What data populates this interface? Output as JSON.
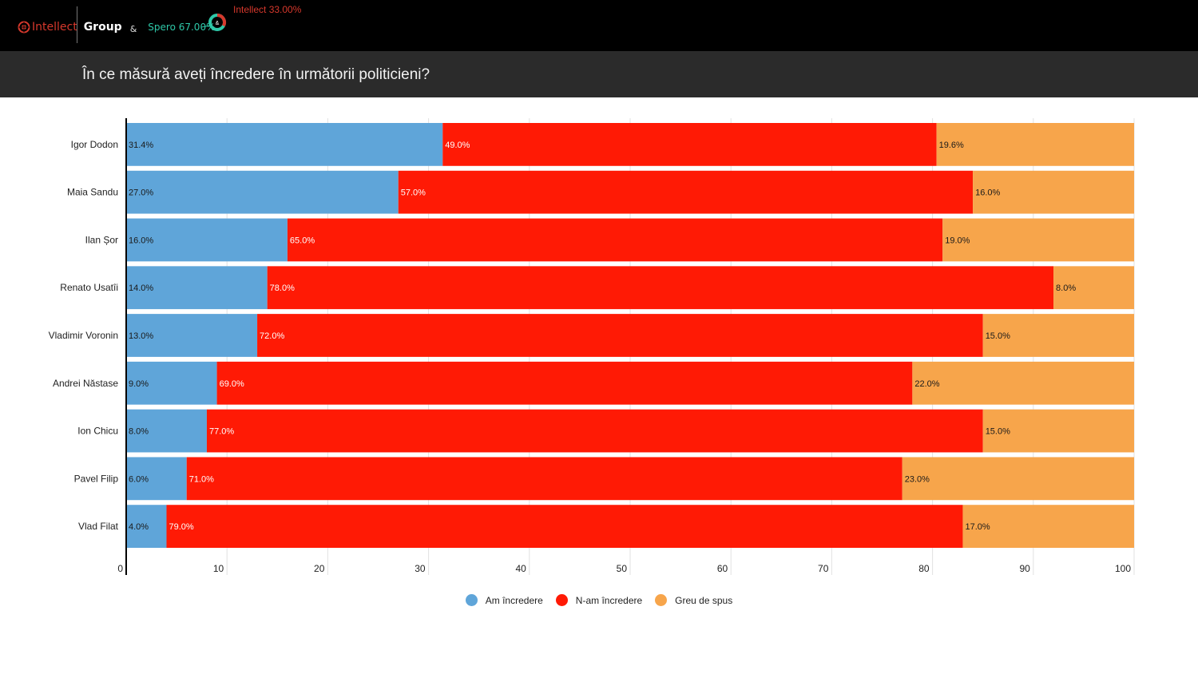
{
  "header": {
    "brand_intellect": "Intellect",
    "brand_group": "Group",
    "brand_amp": "&",
    "spero_label": "Spero 67.00%",
    "intellect_label": "Intellect 33.00%",
    "donut_amp": "&",
    "spero_share": 67,
    "intellect_share": 33
  },
  "colors": {
    "trust": "#5fa5d9",
    "distrust": "#ff1a05",
    "hard_to_say": "#f7a54b",
    "brand_red": "#d6382c",
    "brand_teal": "#2ec8a8"
  },
  "chart_data": {
    "type": "bar",
    "orientation": "horizontal",
    "stacked": true,
    "title": "În ce măsură aveți încredere în următorii politicieni?",
    "categories": [
      "Igor Dodon",
      "Maia Sandu",
      "Ilan Șor",
      "Renato Usatîi",
      "Vladimir Voronin",
      "Andrei Năstase",
      "Ion Chicu",
      "Pavel Filip",
      "Vlad Filat"
    ],
    "series": [
      {
        "name": "Am încredere",
        "values": [
          31.4,
          27.0,
          16.0,
          14.0,
          13.0,
          9.0,
          8.0,
          6.0,
          4.0
        ],
        "labels": [
          "31.4%",
          "27.0%",
          "16.0%",
          "14.0%",
          "13.0%",
          "9.0%",
          "8.0%",
          "6.0%",
          "4.0%"
        ]
      },
      {
        "name": "N-am încredere",
        "values": [
          49.0,
          57.0,
          65.0,
          78.0,
          72.0,
          69.0,
          77.0,
          71.0,
          79.0
        ],
        "labels": [
          "49.0%",
          "57.0%",
          "65.0%",
          "78.0%",
          "72.0%",
          "69.0%",
          "77.0%",
          "71.0%",
          "79.0%"
        ]
      },
      {
        "name": "Greu de spus",
        "values": [
          19.6,
          16.0,
          19.0,
          8.0,
          15.0,
          22.0,
          15.0,
          23.0,
          17.0
        ],
        "labels": [
          "19.6%",
          "16.0%",
          "19.0%",
          "8.0%",
          "15.0%",
          "22.0%",
          "15.0%",
          "23.0%",
          "17.0%"
        ]
      }
    ],
    "xlim": [
      0,
      100
    ],
    "xticks": [
      0,
      10,
      20,
      30,
      40,
      50,
      60,
      70,
      80,
      90,
      100
    ],
    "xtick_labels": [
      "0",
      "10",
      "20",
      "30",
      "40",
      "50",
      "60",
      "70",
      "80",
      "90",
      "100"
    ],
    "grid": true,
    "legend_position": "bottom-center"
  }
}
